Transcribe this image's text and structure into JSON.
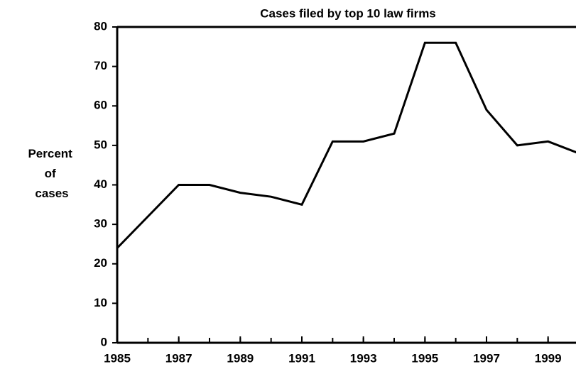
{
  "chart_data": {
    "type": "line",
    "title": "Cases filed by top 10 law firms",
    "y_label": "Percent of cases",
    "x": [
      1985,
      1986,
      1987,
      1988,
      1989,
      1990,
      1991,
      1992,
      1993,
      1994,
      1995,
      1996,
      1997,
      1998,
      1999,
      2000
    ],
    "series": [
      {
        "name": "Cases filed by top 10 law firms",
        "color": "#000000",
        "values": [
          24,
          32,
          40,
          40,
          38,
          37,
          35,
          51,
          51,
          53,
          76,
          76,
          59,
          50,
          51,
          48
        ]
      }
    ],
    "xlim": [
      1985,
      2000
    ],
    "xticks": [
      1985,
      1987,
      1989,
      1991,
      1993,
      1995,
      1997,
      1999
    ],
    "ylim": [
      0,
      80
    ],
    "yticks": [
      0,
      10,
      20,
      30,
      40,
      50,
      60,
      70,
      80
    ],
    "grid": false
  }
}
